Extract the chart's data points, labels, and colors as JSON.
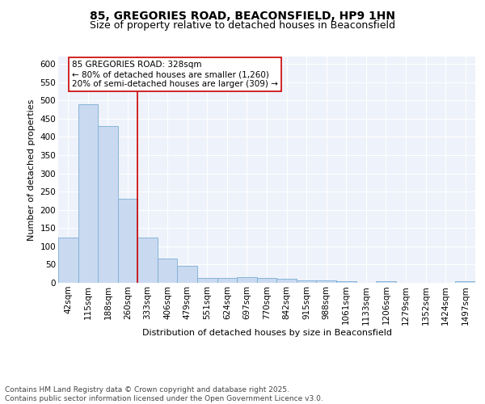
{
  "title_line1": "85, GREGORIES ROAD, BEACONSFIELD, HP9 1HN",
  "title_line2": "Size of property relative to detached houses in Beaconsfield",
  "xlabel": "Distribution of detached houses by size in Beaconsfield",
  "ylabel": "Number of detached properties",
  "categories": [
    "42sqm",
    "115sqm",
    "188sqm",
    "260sqm",
    "333sqm",
    "406sqm",
    "479sqm",
    "551sqm",
    "624sqm",
    "697sqm",
    "770sqm",
    "842sqm",
    "915sqm",
    "988sqm",
    "1061sqm",
    "1133sqm",
    "1206sqm",
    "1279sqm",
    "1352sqm",
    "1424sqm",
    "1497sqm"
  ],
  "values": [
    125,
    490,
    430,
    230,
    125,
    67,
    47,
    14,
    14,
    15,
    14,
    10,
    7,
    6,
    5,
    1,
    5,
    1,
    1,
    1,
    5
  ],
  "bar_color": "#c9d9f0",
  "bar_edge_color": "#7bafd4",
  "vline_color": "#cc0000",
  "annotation_text": "85 GREGORIES ROAD: 328sqm\n← 80% of detached houses are smaller (1,260)\n20% of semi-detached houses are larger (309) →",
  "annotation_box_edge": "#cc0000",
  "ylim": [
    0,
    620
  ],
  "yticks": [
    0,
    50,
    100,
    150,
    200,
    250,
    300,
    350,
    400,
    450,
    500,
    550,
    600
  ],
  "footnote": "Contains HM Land Registry data © Crown copyright and database right 2025.\nContains public sector information licensed under the Open Government Licence v3.0.",
  "background_color": "#eef2fa",
  "grid_color": "#ffffff",
  "title_fontsize": 10,
  "subtitle_fontsize": 9,
  "axis_label_fontsize": 8,
  "tick_fontsize": 7.5,
  "annotation_fontsize": 7.5,
  "footnote_fontsize": 6.5
}
